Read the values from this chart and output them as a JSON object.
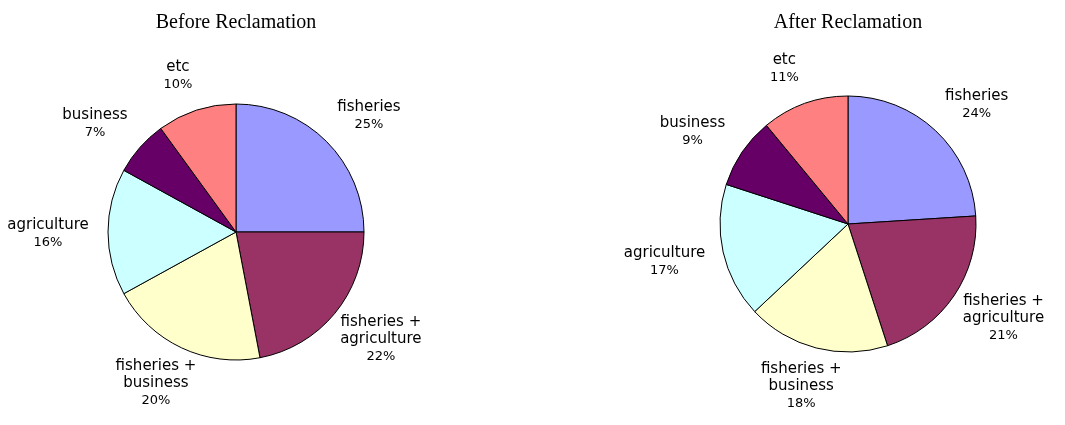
{
  "chart_data": [
    {
      "type": "pie",
      "title": "Before  Reclamation",
      "categories": [
        "fisheries",
        "fisheries + agriculture",
        "fisheries + business",
        "agriculture",
        "business",
        "etc"
      ],
      "values": [
        25,
        22,
        20,
        16,
        7,
        10
      ],
      "value_labels": [
        "25%",
        "22%",
        "20%",
        "16%",
        "7%",
        "10%"
      ],
      "colors": [
        "#9999ff",
        "#993366",
        "#ffffcc",
        "#ccffff",
        "#660066",
        "#ff8080"
      ]
    },
    {
      "type": "pie",
      "title": "After  Reclamation",
      "categories": [
        "fisheries",
        "fisheries + agriculture",
        "fisheries + business",
        "agriculture",
        "business",
        "etc"
      ],
      "values": [
        24,
        21,
        18,
        17,
        9,
        11
      ],
      "value_labels": [
        "24%",
        "21%",
        "18%",
        "17%",
        "9%",
        "11%"
      ],
      "colors": [
        "#9999ff",
        "#993366",
        "#ffffcc",
        "#ccffff",
        "#660066",
        "#ff8080"
      ]
    }
  ]
}
